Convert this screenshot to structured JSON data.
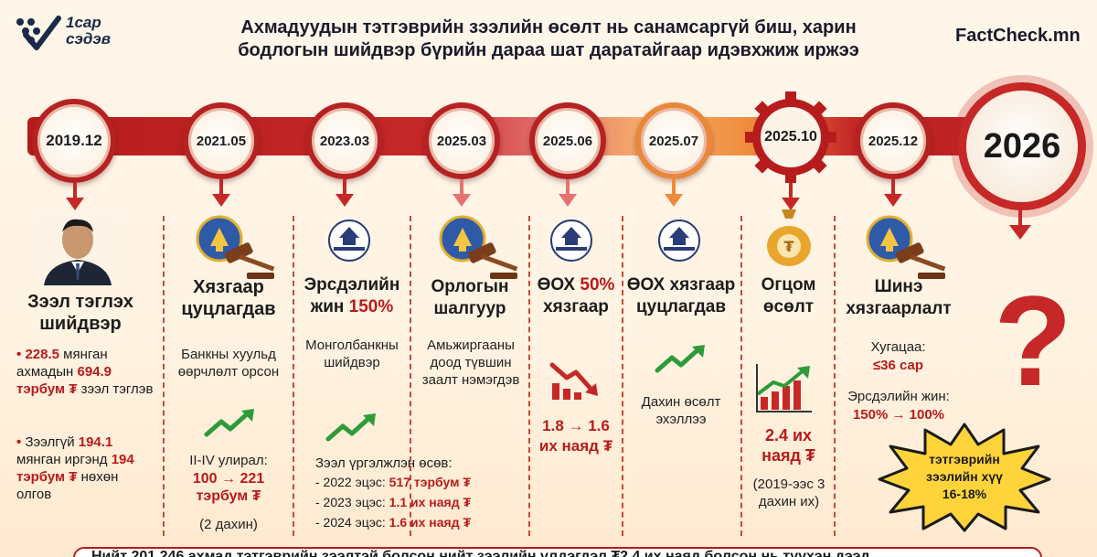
{
  "header": {
    "logo_text": "1сар\nсэдэв",
    "title_line1": "Ахмадуудын тэтгэврийн зээлийн өсөлт нь санамсаргүй биш, харин",
    "title_line2": "бодлогын шийдвэр бүрийн дараа шат даратайгаар идэвхжиж иржээ",
    "brand": "FactCheck.mn"
  },
  "colors": {
    "accent_red": "#b71c1c",
    "accent_orange": "#e9873a",
    "background": "#fff3e2"
  },
  "timeline": {
    "nodes": [
      {
        "date": "2019.12"
      },
      {
        "date": "2021.05"
      },
      {
        "date": "2023.03"
      },
      {
        "date": "2025.03"
      },
      {
        "date": "2025.06"
      },
      {
        "date": "2025.07"
      },
      {
        "date": "2025.10"
      },
      {
        "date": "2025.12"
      },
      {
        "date": "2026"
      }
    ]
  },
  "columns": {
    "c1": {
      "title": "Зээл тэглэх шийдвэр",
      "b1_val1": "228.5",
      "b1_mid": " мянган ахмадын ",
      "b1_val2": "694.9 тэрбум ₮",
      "b1_end": " зээл тэглэв",
      "b2_pre": "Зээлгүй ",
      "b2_val1": "194.1",
      "b2_mid": " мянган иргэнд ",
      "b2_val2": "194 тэрбум ₮",
      "b2_end": " нөхөн олгов"
    },
    "c2": {
      "title": "Хязгаар цуцлагдав",
      "desc": "Банкны хуульд өөрчлөлт орсон",
      "note": "II-IV улирал:",
      "value": "100 → 221 тэрбум ₮",
      "sub": "(2 дахин)"
    },
    "c3": {
      "title_main": "Эрсдэлийн жин ",
      "title_pct": "150%",
      "desc": "Монголбанкны шийдвэр",
      "growth_label": "Зээл үргэлжлэн өсөв:",
      "growth": [
        {
          "label": "- 2022 эцэс: ",
          "value": "517 тэрбум ₮"
        },
        {
          "label": "- 2023 эцэс: ",
          "value": "1.1 их наяд ₮"
        },
        {
          "label": "- 2024 эцэс: ",
          "value": "1.6 их наяд ₮"
        }
      ]
    },
    "c4": {
      "title": "Орлогын шалгуур",
      "desc": "Амьжиргааны доод түвшин заалт нэмэгдэв"
    },
    "c5": {
      "title_main": "ӨОХ ",
      "title_pct": "50%",
      "title_end": "хязгаар",
      "value": "1.8 → 1.6 их наяд ₮"
    },
    "c6": {
      "title": "ӨОХ хязгаар цуцлагдав",
      "desc": "Дахин өсөлт эхэллээ"
    },
    "c7": {
      "title": "Огцом өсөлт",
      "value": "2.4 их наяд ₮",
      "sub": "(2019-ээс 3 дахин их)"
    },
    "c8": {
      "title": "Шинэ хязгаарлалт",
      "term_label": "Хугацаа:",
      "term_value": "≤36 сар",
      "risk_label": "Эрсдэлийн жин:",
      "risk_value": "150% → 100%"
    },
    "c9": {
      "question": "?",
      "starburst": "тэтгэврийн зээлийн хүү 16-18%"
    }
  },
  "bottom_banner": "Нийт 201,246 ахмад тэтгэврийн зээлтэй болсон нийт зээлийн үлдэгдэл ₮2.4 их наяд болсон нь түүхэн дээд"
}
